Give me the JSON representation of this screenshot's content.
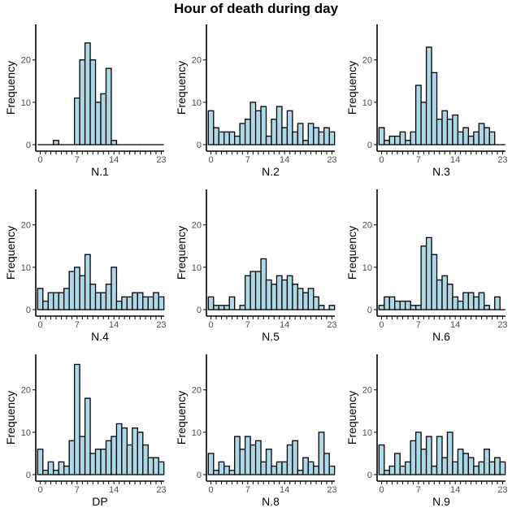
{
  "title": "Hour of death during day",
  "colors": {
    "bar_fill": "#add8e6",
    "bar_stroke": "#000000",
    "axis": "#000000"
  },
  "chart_data": [
    {
      "type": "bar",
      "xlabel": "N.1",
      "ylabel": "Frequency",
      "x": [
        0,
        1,
        2,
        3,
        4,
        5,
        6,
        7,
        8,
        9,
        10,
        11,
        12,
        13,
        14,
        15,
        16,
        17,
        18,
        19,
        20,
        21,
        22,
        23
      ],
      "values": [
        0,
        0,
        0,
        1,
        0,
        0,
        0,
        11,
        20,
        24,
        20,
        10,
        12,
        18,
        1,
        0,
        0,
        0,
        0,
        0,
        0,
        0,
        0,
        0
      ],
      "ylim": [
        0,
        28
      ],
      "yticks": [
        0,
        10,
        20
      ],
      "xticks": [
        0,
        7,
        14,
        23
      ]
    },
    {
      "type": "bar",
      "xlabel": "N.2",
      "ylabel": "Frequency",
      "x": [
        0,
        1,
        2,
        3,
        4,
        5,
        6,
        7,
        8,
        9,
        10,
        11,
        12,
        13,
        14,
        15,
        16,
        17,
        18,
        19,
        20,
        21,
        22,
        23
      ],
      "values": [
        8,
        4,
        3,
        3,
        3,
        2,
        5,
        6,
        10,
        8,
        9,
        2,
        6,
        9,
        4,
        8,
        3,
        5,
        1,
        5,
        4,
        3,
        4,
        3
      ],
      "ylim": [
        0,
        28
      ],
      "yticks": [
        0,
        10,
        20
      ],
      "xticks": [
        0,
        7,
        14,
        23
      ]
    },
    {
      "type": "bar",
      "xlabel": "N.3",
      "ylabel": "Frequency",
      "x": [
        0,
        1,
        2,
        3,
        4,
        5,
        6,
        7,
        8,
        9,
        10,
        11,
        12,
        13,
        14,
        15,
        16,
        17,
        18,
        19,
        20,
        21,
        22,
        23
      ],
      "values": [
        4,
        1,
        2,
        2,
        3,
        1,
        3,
        14,
        10,
        23,
        17,
        6,
        8,
        6,
        7,
        3,
        4,
        2,
        3,
        5,
        4,
        3,
        0,
        0
      ],
      "ylim": [
        0,
        28
      ],
      "yticks": [
        0,
        10,
        20
      ],
      "xticks": [
        0,
        7,
        14,
        23
      ]
    },
    {
      "type": "bar",
      "xlabel": "N.4",
      "ylabel": "Frequency",
      "x": [
        0,
        1,
        2,
        3,
        4,
        5,
        6,
        7,
        8,
        9,
        10,
        11,
        12,
        13,
        14,
        15,
        16,
        17,
        18,
        19,
        20,
        21,
        22,
        23
      ],
      "values": [
        5,
        2,
        4,
        4,
        4,
        5,
        9,
        10,
        8,
        13,
        6,
        4,
        4,
        6,
        10,
        2,
        3,
        3,
        4,
        4,
        3,
        3,
        4,
        3
      ],
      "ylim": [
        0,
        28
      ],
      "yticks": [
        0,
        10,
        20
      ],
      "xticks": [
        0,
        7,
        14,
        23
      ]
    },
    {
      "type": "bar",
      "xlabel": "N.5",
      "ylabel": "Frequency",
      "x": [
        0,
        1,
        2,
        3,
        4,
        5,
        6,
        7,
        8,
        9,
        10,
        11,
        12,
        13,
        14,
        15,
        16,
        17,
        18,
        19,
        20,
        21,
        22,
        23
      ],
      "values": [
        3,
        1,
        1,
        1,
        3,
        0,
        1,
        8,
        9,
        9,
        12,
        7,
        6,
        8,
        7,
        8,
        6,
        5,
        4,
        5,
        3,
        1,
        0,
        1
      ],
      "ylim": [
        0,
        28
      ],
      "yticks": [
        0,
        10,
        20
      ],
      "xticks": [
        0,
        7,
        14,
        23
      ]
    },
    {
      "type": "bar",
      "xlabel": "N.6",
      "ylabel": "Frequency",
      "x": [
        0,
        1,
        2,
        3,
        4,
        5,
        6,
        7,
        8,
        9,
        10,
        11,
        12,
        13,
        14,
        15,
        16,
        17,
        18,
        19,
        20,
        21,
        22,
        23
      ],
      "values": [
        1,
        3,
        3,
        2,
        2,
        2,
        1,
        1,
        15,
        17,
        13,
        7,
        8,
        6,
        3,
        2,
        4,
        4,
        3,
        4,
        1,
        0,
        3,
        0
      ],
      "ylim": [
        0,
        28
      ],
      "yticks": [
        0,
        10,
        20
      ],
      "xticks": [
        0,
        7,
        14,
        23
      ]
    },
    {
      "type": "bar",
      "xlabel": "DP",
      "ylabel": "Frequency",
      "x": [
        0,
        1,
        2,
        3,
        4,
        5,
        6,
        7,
        8,
        9,
        10,
        11,
        12,
        13,
        14,
        15,
        16,
        17,
        18,
        19,
        20,
        21,
        22,
        23
      ],
      "values": [
        6,
        1,
        3,
        1,
        3,
        2,
        8,
        26,
        9,
        18,
        5,
        6,
        6,
        8,
        9,
        12,
        11,
        7,
        11,
        10,
        7,
        4,
        4,
        3
      ],
      "ylim": [
        0,
        28
      ],
      "yticks": [
        0,
        10,
        20
      ],
      "xticks": [
        0,
        7,
        14,
        23
      ]
    },
    {
      "type": "bar",
      "xlabel": "N.8",
      "ylabel": "Frequency",
      "x": [
        0,
        1,
        2,
        3,
        4,
        5,
        6,
        7,
        8,
        9,
        10,
        11,
        12,
        13,
        14,
        15,
        16,
        17,
        18,
        19,
        20,
        21,
        22,
        23
      ],
      "values": [
        5,
        1,
        3,
        2,
        1,
        9,
        6,
        9,
        7,
        8,
        3,
        6,
        2,
        3,
        3,
        7,
        8,
        1,
        4,
        3,
        2,
        10,
        5,
        2
      ],
      "ylim": [
        0,
        28
      ],
      "yticks": [
        0,
        10,
        20
      ],
      "xticks": [
        0,
        7,
        14,
        23
      ]
    },
    {
      "type": "bar",
      "xlabel": "N.9",
      "ylabel": "Frequency",
      "x": [
        0,
        1,
        2,
        3,
        4,
        5,
        6,
        7,
        8,
        9,
        10,
        11,
        12,
        13,
        14,
        15,
        16,
        17,
        18,
        19,
        20,
        21,
        22,
        23
      ],
      "values": [
        7,
        1,
        2,
        5,
        2,
        3,
        8,
        10,
        6,
        9,
        2,
        9,
        4,
        10,
        3,
        6,
        5,
        4,
        2,
        3,
        6,
        3,
        4,
        3
      ],
      "ylim": [
        0,
        28
      ],
      "yticks": [
        0,
        10,
        20
      ],
      "xticks": [
        0,
        7,
        14,
        23
      ]
    }
  ]
}
